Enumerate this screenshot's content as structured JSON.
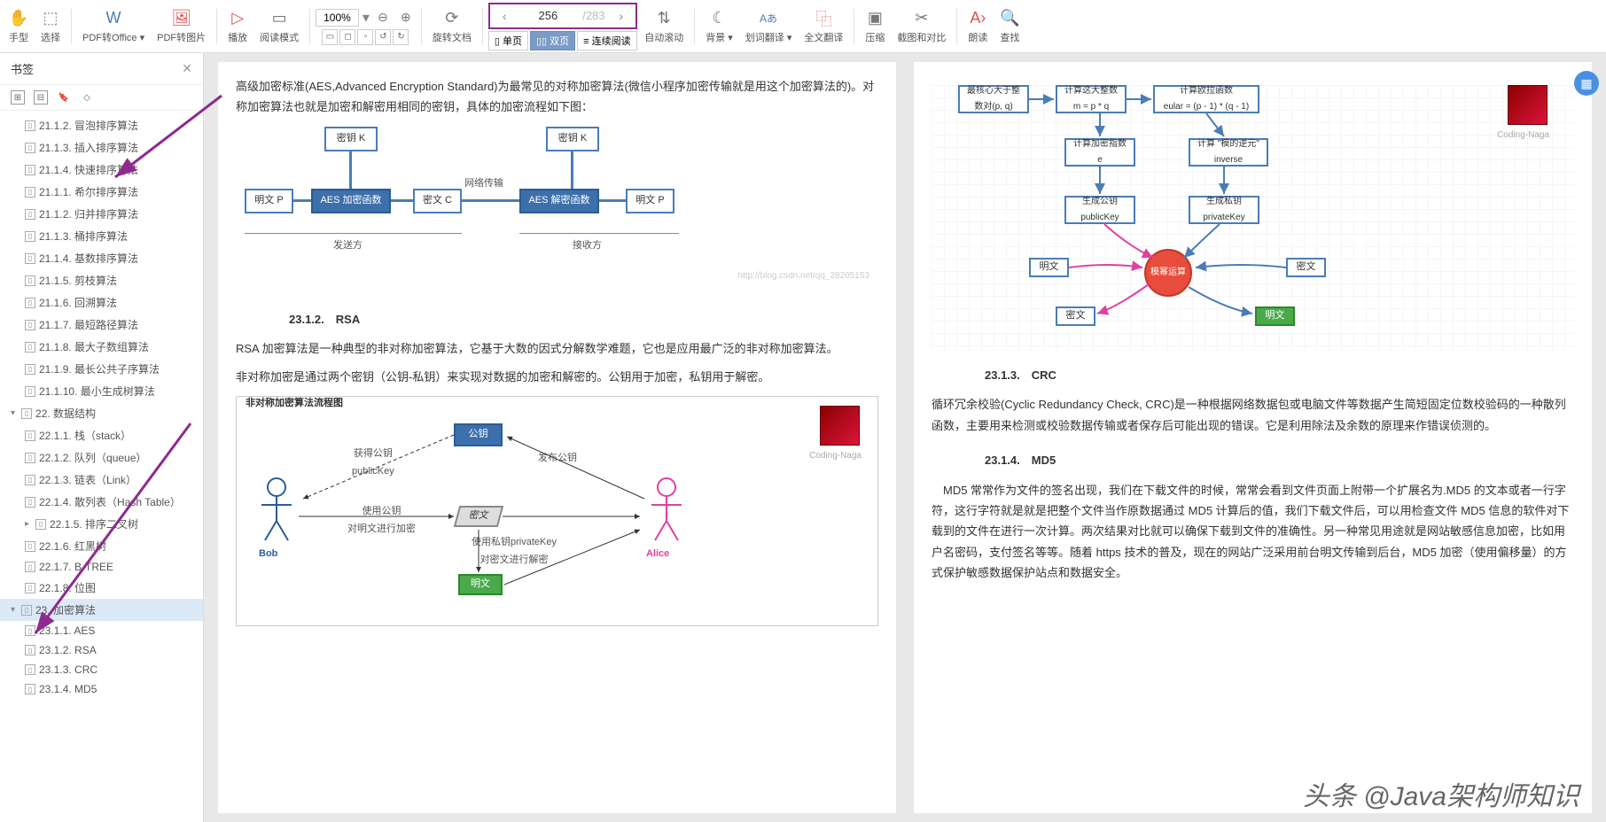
{
  "toolbar": {
    "items": [
      {
        "label": "手型",
        "icon": "✋"
      },
      {
        "label": "选择",
        "icon": "▭"
      },
      {
        "label": "PDF转Office",
        "icon": "W",
        "caret": true
      },
      {
        "label": "PDF转图片",
        "icon": "🖼"
      },
      {
        "label": "播放",
        "icon": "▷"
      },
      {
        "label": "阅读模式",
        "icon": "▭"
      }
    ],
    "zoom": "100%",
    "page_current": "256",
    "page_total": "/283",
    "rotate_label": "旋转文档",
    "view_single": "单页",
    "view_double": "双页",
    "view_cont": "连续阅读",
    "autoscroll": "自动滚动",
    "right_items": [
      {
        "label": "背景",
        "icon": "☾",
        "caret": true
      },
      {
        "label": "划词翻译",
        "icon": "Aあ",
        "caret": true
      },
      {
        "label": "全文翻译",
        "icon": "⿻"
      },
      {
        "label": "压缩",
        "icon": "▣"
      },
      {
        "label": "截图和对比",
        "icon": "▭"
      },
      {
        "label": "朗读",
        "icon": "A›"
      },
      {
        "label": "查找",
        "icon": "🔍"
      }
    ]
  },
  "sidebar": {
    "title": "书签",
    "items": [
      {
        "label": "21.1.2. 冒泡排序算法",
        "level": 1
      },
      {
        "label": "21.1.3. 插入排序算法",
        "level": 1
      },
      {
        "label": "21.1.4. 快速排序算法",
        "level": 1
      },
      {
        "label": "21.1.1. 希尔排序算法",
        "level": 1
      },
      {
        "label": "21.1.2. 归并排序算法",
        "level": 1
      },
      {
        "label": "21.1.3. 桶排序算法",
        "level": 1
      },
      {
        "label": "21.1.4. 基数排序算法",
        "level": 1
      },
      {
        "label": "21.1.5. 剪枝算法",
        "level": 1
      },
      {
        "label": "21.1.6. 回溯算法",
        "level": 1
      },
      {
        "label": "21.1.7. 最短路径算法",
        "level": 1
      },
      {
        "label": "21.1.8. 最大子数组算法",
        "level": 1
      },
      {
        "label": "21.1.9. 最长公共子序算法",
        "level": 1
      },
      {
        "label": "21.1.10. 最小生成树算法",
        "level": 1
      },
      {
        "label": "22. 数据结构",
        "level": 0,
        "caret": "▾"
      },
      {
        "label": "22.1.1. 栈（stack）",
        "level": 1
      },
      {
        "label": "22.1.2. 队列（queue）",
        "level": 1
      },
      {
        "label": "22.1.3. 链表（Link）",
        "level": 1
      },
      {
        "label": "22.1.4. 散列表（Hash Table）",
        "level": 1
      },
      {
        "label": "22.1.5. 排序二叉树",
        "level": 1,
        "caret": "▸"
      },
      {
        "label": "22.1.6. 红黑树",
        "level": 1
      },
      {
        "label": "22.1.7. B-TREE",
        "level": 1
      },
      {
        "label": "22.1.8. 位图",
        "level": 1
      },
      {
        "label": "23. 加密算法",
        "level": 0,
        "caret": "▾",
        "selected": true
      },
      {
        "label": "23.1.1. AES",
        "level": 1
      },
      {
        "label": "23.1.2. RSA",
        "level": 1
      },
      {
        "label": "23.1.3. CRC",
        "level": 1
      },
      {
        "label": "23.1.4. MD5",
        "level": 1
      }
    ]
  },
  "doc": {
    "left": {
      "intro": "高级加密标准(AES,Advanced Encryption Standard)为最常见的对称加密算法(微信小程序加密传输就是用这个加密算法的)。对称加密算法也就是加密和解密用相同的密钥，具体的加密流程如下图：",
      "aes": {
        "key_k": "密钥 K",
        "plain_p": "明文 P",
        "enc_fn": "AES 加密函数",
        "cipher_c": "密文 C",
        "net": "网络传输",
        "dec_fn": "AES 解密函数",
        "plain_p2": "明文 P",
        "sender": "发送方",
        "receiver": "接收方",
        "watermark_url": "http://blog.csdn.net/qq_28205153"
      },
      "rsa_title": "23.1.2.　RSA",
      "rsa_p1": "RSA 加密算法是一种典型的非对称加密算法，它基于大数的因式分解数学难题，它也是应用最广泛的非对称加密算法。",
      "rsa_p2": "非对称加密是通过两个密钥（公钥-私钥）来实现对数据的加密和解密的。公钥用于加密，私钥用于解密。",
      "rsa_diag_title": "非对称加密算法流程图",
      "rsa": {
        "pubkey": "公钥",
        "get_pub": "获得公钥\npublicKey",
        "send_pub": "发布公钥",
        "use_pub": "使用公钥\n对明文进行加密",
        "cipher": "密文",
        "use_priv": "使用私钥privateKey\n对密文进行解密",
        "plain": "明文",
        "bob": "Bob",
        "alice": "Alice",
        "avatar": "Coding-Naga"
      }
    },
    "right": {
      "flow": {
        "top1": "最核心大于整\n数对(p, q)",
        "top2": "计算这大整数\nm = p * q",
        "top3": "计算欧拉函数\neular = (p - 1) * (q - 1)",
        "mid1": "计算加密指数\ne",
        "mid2": "计算 \"模的逆元\"\ninverse",
        "pub": "生成公钥\npublicKey",
        "priv": "生成私钥\nprivateKey",
        "center": "模幂运算",
        "plain_l": "明文",
        "cipher_l": "密文",
        "cipher_r": "密文",
        "plain_r": "明文",
        "avatar": "Coding-Naga"
      },
      "crc_title": "23.1.3.　CRC",
      "crc_p": "循环冗余校验(Cyclic Redundancy Check, CRC)是一种根据网络数据包或电脑文件等数据产生简短固定位数校验码的一种散列函数，主要用来检测或校验数据传输或者保存后可能出现的错误。它是利用除法及余数的原理来作错误侦测的。",
      "md5_title": "23.1.4.　MD5",
      "md5_p": "MD5 常常作为文件的签名出现，我们在下载文件的时候，常常会看到文件页面上附带一个扩展名为.MD5 的文本或者一行字符，这行字符就是就是把整个文件当作原数据通过 MD5 计算后的值，我们下载文件后，可以用检查文件 MD5 信息的软件对下载到的文件在进行一次计算。两次结果对比就可以确保下载到文件的准确性。另一种常见用途就是网站敏感信息加密，比如用户名密码，支付签名等等。随着 https 技术的普及，现在的网站广泛采用前台明文传输到后台，MD5 加密（使用偏移量）的方式保护敏感数据保护站点和数据安全。"
    },
    "watermark": "头条 @Java架构师知识"
  },
  "colors": {
    "blue": "#4a7db8",
    "bluefill": "#3d70ab",
    "green": "#4aaa4a",
    "red": "#e74c3c",
    "magenta": "#e040a0",
    "purple_anno": "#8e2a8e"
  }
}
